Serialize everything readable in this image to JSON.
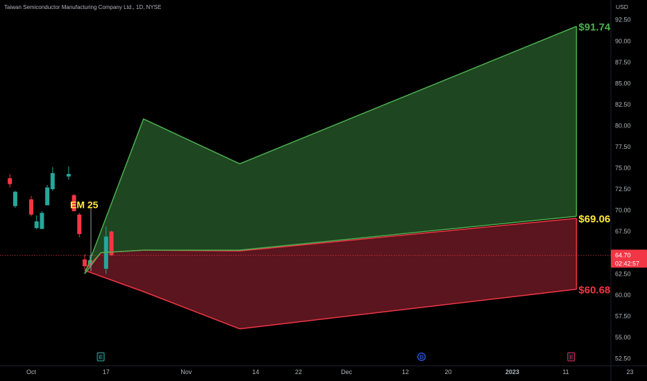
{
  "header": {
    "legend": "Taiwan Semiconductor Manufacturing Company Ltd., 1D, NYSE",
    "currency": "USD"
  },
  "chart_data": {
    "type": "candlestick-projection",
    "symbol_legend": "Taiwan Semiconductor Manufacturing Company Ltd., 1D, NYSE",
    "y_axis": {
      "unit": "USD",
      "range": [
        52.5,
        93.4
      ],
      "ticks": [
        "52.50",
        "55.00",
        "57.50",
        "60.00",
        "62.50",
        "65.00",
        "67.50",
        "70.00",
        "72.50",
        "75.00",
        "77.50",
        "80.00",
        "82.50",
        "85.00",
        "87.50",
        "90.00",
        "92.50"
      ],
      "position": "right",
      "grid": false
    },
    "x_axis": {
      "ticks": [
        {
          "label": "Oct",
          "date": "2022-10-03",
          "bold": false
        },
        {
          "label": "17",
          "date": "2022-10-17",
          "bold": false
        },
        {
          "label": "Nov",
          "date": "2022-11-01",
          "bold": false
        },
        {
          "label": "14",
          "date": "2022-11-14",
          "bold": false
        },
        {
          "label": "22",
          "date": "2022-11-22",
          "bold": false
        },
        {
          "label": "Dec",
          "date": "2022-12-01",
          "bold": false
        },
        {
          "label": "12",
          "date": "2022-12-12",
          "bold": false
        },
        {
          "label": "20",
          "date": "2022-12-20",
          "bold": false
        },
        {
          "label": "2023",
          "date": "2023-01-01",
          "bold": true
        },
        {
          "label": "11",
          "date": "2023-01-11",
          "bold": false
        },
        {
          "label": "23",
          "date": "2023-01-23",
          "bold": false
        }
      ]
    },
    "candles": [
      {
        "date": "2022-09-29",
        "open": 73.8,
        "high": 74.3,
        "low": 72.7,
        "close": 73.1
      },
      {
        "date": "2022-09-30",
        "open": 70.5,
        "high": 72.3,
        "low": 70.3,
        "close": 72.2
      },
      {
        "date": "2022-10-03",
        "open": 71.3,
        "high": 71.7,
        "low": 69.3,
        "close": 69.5
      },
      {
        "date": "2022-10-04",
        "open": 67.9,
        "high": 69.4,
        "low": 67.8,
        "close": 68.7
      },
      {
        "date": "2022-10-05",
        "open": 67.8,
        "high": 69.9,
        "low": 67.8,
        "close": 69.7
      },
      {
        "date": "2022-10-06",
        "open": 70.6,
        "high": 73.0,
        "low": 70.6,
        "close": 72.7
      },
      {
        "date": "2022-10-07",
        "open": 72.5,
        "high": 75.1,
        "low": 72.3,
        "close": 74.4
      },
      {
        "date": "2022-10-10",
        "open": 74.0,
        "high": 75.2,
        "low": 73.6,
        "close": 74.3
      },
      {
        "date": "2022-10-11",
        "open": 71.8,
        "high": 71.9,
        "low": 69.9,
        "close": 69.9
      },
      {
        "date": "2022-10-12",
        "open": 69.5,
        "high": 69.7,
        "low": 66.8,
        "close": 67.2
      },
      {
        "date": "2022-10-13",
        "open": 64.2,
        "high": 64.8,
        "low": 63.1,
        "close": 63.4
      },
      {
        "date": "2022-10-14",
        "open": 63.5,
        "high": 64.7,
        "low": 63.2,
        "close": 64.1
      },
      {
        "date": "2022-10-17",
        "open": 63.1,
        "high": 68.1,
        "low": 62.5,
        "close": 66.9
      },
      {
        "date": "2022-10-18",
        "open": 67.5,
        "high": 67.6,
        "low": 64.6,
        "close": 64.7
      }
    ],
    "projection": {
      "upper_line": [
        {
          "date": "2022-10-13",
          "value": 62.5
        },
        {
          "date": "2022-10-24",
          "value": 80.8
        },
        {
          "date": "2022-11-11",
          "value": 75.5
        },
        {
          "date": "2023-01-13",
          "value": 91.74
        }
      ],
      "mid_upper_line": [
        {
          "date": "2022-10-13",
          "value": 62.5
        },
        {
          "date": "2022-10-16",
          "value": 65.0
        },
        {
          "date": "2022-10-24",
          "value": 65.3
        },
        {
          "date": "2022-11-11",
          "value": 65.3
        },
        {
          "date": "2023-01-13",
          "value": 69.3
        }
      ],
      "mid_lower_line": [
        {
          "date": "2022-10-13",
          "value": 62.9
        },
        {
          "date": "2022-10-16",
          "value": 65.0
        },
        {
          "date": "2022-10-24",
          "value": 65.3
        },
        {
          "date": "2022-11-11",
          "value": 65.2
        },
        {
          "date": "2023-01-13",
          "value": 69.06
        }
      ],
      "lower_line": [
        {
          "date": "2022-10-13",
          "value": 62.9
        },
        {
          "date": "2022-10-24",
          "value": 60.4
        },
        {
          "date": "2022-11-11",
          "value": 56.0
        },
        {
          "date": "2023-01-13",
          "value": 60.68
        }
      ]
    },
    "annotations": [
      {
        "text": "EM 25",
        "date": "2022-10-13",
        "value": 70.5,
        "color": "#ffeb3b"
      },
      {
        "text": "$91.74",
        "date": "2023-01-13",
        "value": 91.74,
        "color": "#4caf50"
      },
      {
        "text": "$69.06",
        "date": "2023-01-13",
        "value": 69.06,
        "color": "#ffeb3b"
      },
      {
        "text": "$60.68",
        "date": "2023-01-13",
        "value": 60.68,
        "color": "#f23645"
      }
    ],
    "event_markers": [
      {
        "letter": "E",
        "date": "2022-10-16",
        "color": "#26a69a"
      },
      {
        "letter": "D",
        "date": "2022-12-15",
        "color": "#2962ff"
      },
      {
        "letter": "E",
        "date": "2023-01-12",
        "color": "#e91e63"
      }
    ],
    "current_price": {
      "value": 64.7,
      "price_label": "64.70",
      "countdown": "02:42:57",
      "color": "#f23645"
    },
    "colors": {
      "up": "#26a69a",
      "down": "#f23645",
      "green_line": "#4caf50",
      "red_line": "#f23645",
      "green_fill": "#1e4620",
      "red_fill": "#5a151e",
      "axis_text": "#b2b5be"
    }
  }
}
